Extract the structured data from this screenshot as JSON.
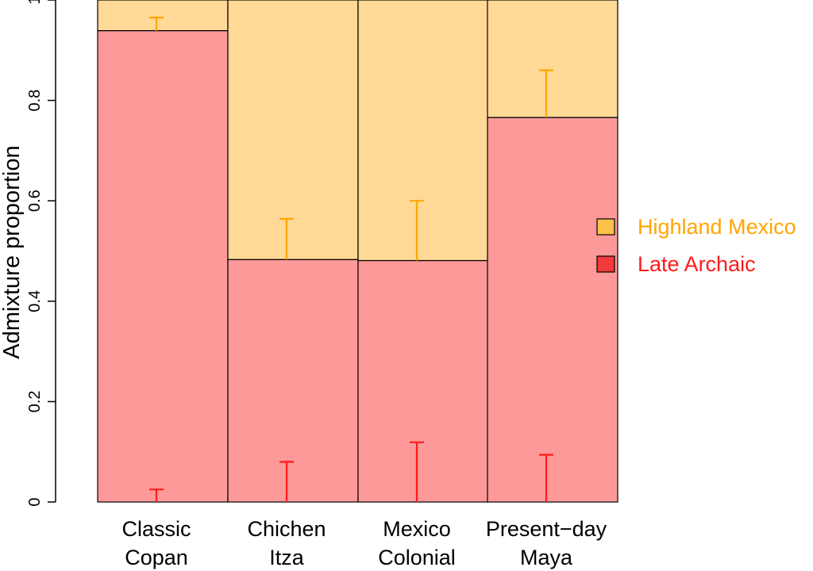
{
  "chart_data": {
    "type": "bar",
    "stacked": true,
    "ylabel": "Admixture proportion",
    "ylim": [
      0,
      1
    ],
    "yticks": [
      {
        "value": 0,
        "label": "0"
      },
      {
        "value": 0.2,
        "label": "0.2"
      },
      {
        "value": 0.4,
        "label": "0.4"
      },
      {
        "value": 0.6,
        "label": "0.6"
      },
      {
        "value": 0.8,
        "label": "0.8"
      },
      {
        "value": 1.0,
        "label": "1"
      }
    ],
    "categories": [
      {
        "line1": "Classic",
        "line2": "Copan"
      },
      {
        "line1": "Chichen",
        "line2": "Itza"
      },
      {
        "line1": "Mexico",
        "line2": "Colonial"
      },
      {
        "line1": "Present−day",
        "line2": "Maya"
      }
    ],
    "series": [
      {
        "name": "Late Archaic",
        "fill": "#fe9999",
        "text_color": "#ff1a1a",
        "errorbar_color": "#ff1a1a",
        "values": [
          0.939,
          0.483,
          0.481,
          0.766
        ],
        "errorbars": [
          {
            "from": 0,
            "to": 0.025
          },
          {
            "from": 0,
            "to": 0.08
          },
          {
            "from": 0,
            "to": 0.119
          },
          {
            "from": 0,
            "to": 0.094
          }
        ]
      },
      {
        "name": "Highland Mexico",
        "fill": "#ffd995",
        "text_color": "#ffa500",
        "errorbar_color": "#ffa500",
        "values": [
          0.061,
          0.517,
          0.519,
          0.234
        ],
        "errorbars": [
          {
            "from": 0.939,
            "to": 0.965
          },
          {
            "from": 0.483,
            "to": 0.564
          },
          {
            "from": 0.481,
            "to": 0.6
          },
          {
            "from": 0.766,
            "to": 0.86
          }
        ]
      }
    ],
    "legend": {
      "position": "right",
      "order": [
        "Highland Mexico",
        "Late Archaic"
      ],
      "swatches": {
        "Highland Mexico": "#ffc04c",
        "Late Archaic": "#f23a3a"
      }
    }
  }
}
